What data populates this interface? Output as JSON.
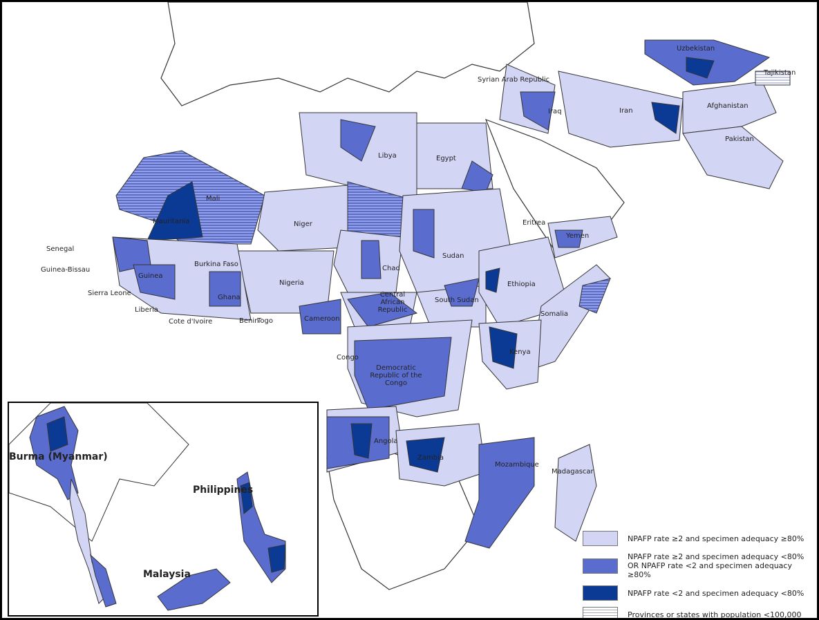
{
  "colors": {
    "high_both": "#d3d5f5",
    "one_met": "#5a6dcf",
    "neither_met": "#0b3a94",
    "hatched_low_population": "#ffffff",
    "no_data": "#ffffff",
    "border": "#333333"
  },
  "labels": {
    "uzbekistan": "Uzbekistan",
    "syria": "Syrian Arab Republic",
    "tajikistan": "Tajikistan",
    "iraq": "Iraq",
    "iran": "Iran",
    "afghanistan": "Afghanistan",
    "pakistan": "Pakistan",
    "libya": "Libya",
    "egypt": "Egypt",
    "mali": "Mali",
    "mauritania": "Mauritania",
    "niger": "Niger",
    "eritrea": "Eritrea",
    "yemen": "Yemen",
    "senegal": "Senegal",
    "guinea_bissau": "Guinea-Bissau",
    "sudan": "Sudan",
    "burkina_faso": "Burkina Faso",
    "chad": "Chad",
    "nigeria": "Nigeria",
    "guinea": "Guinea",
    "ethiopia": "Ethiopia",
    "car": "Central African Republic",
    "south_sudan": "South Sudan",
    "ghana": "Ghana",
    "sierra_leone": "Sierra  Leone",
    "cameroon": "Cameroon",
    "liberia": "Liberia",
    "cote_divoire": "Cote d'Ivoire",
    "benin": "Benin",
    "togo": "Togo",
    "somalia": "Somalia",
    "kenya": "Kenya",
    "congo": "Congo",
    "drc": "Democratic Republic of the Congo",
    "angola": "Angola",
    "zambia": "Zambia",
    "mozambique": "Mozambique",
    "madagascar": "Madagascar",
    "burma": "Burma (Myanmar)",
    "philippines": "Philippines",
    "malaysia": "Malaysia"
  },
  "legend": [
    {
      "category": "high_both",
      "label": "NPAFP rate ≥2 and specimen adequacy ≥80%"
    },
    {
      "category": "one_met",
      "label": "NPAFP rate ≥2 and specimen adequacy <80%",
      "label2": "OR NPAFP rate <2 and specimen adequacy ≥80%"
    },
    {
      "category": "neither_met",
      "label": "NPAFP rate <2 and specimen adequacy <80%"
    },
    {
      "category": "hatched_low_population",
      "label": "Provinces or states with population <100,000"
    }
  ]
}
